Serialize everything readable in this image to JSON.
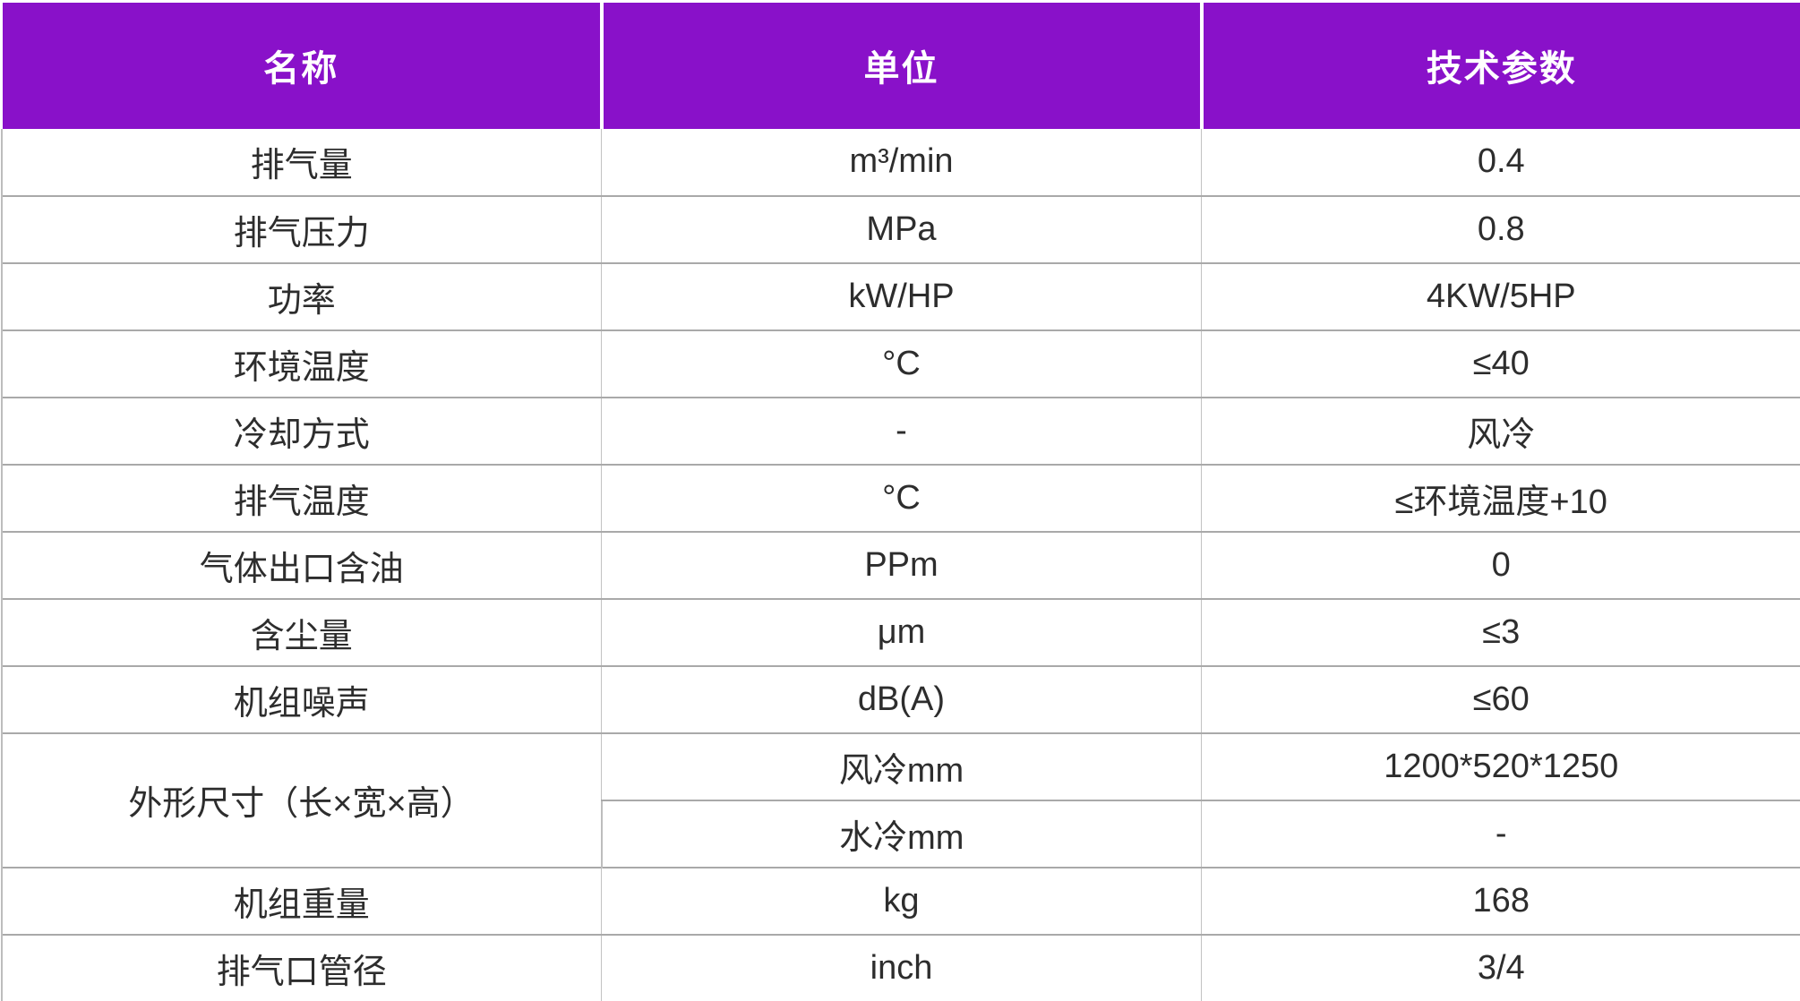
{
  "table": {
    "columns": {
      "name": "名称",
      "unit": "单位",
      "param": "技术参数"
    },
    "rows": [
      {
        "name": "排气量",
        "unit": "m³/min",
        "value": "0.4"
      },
      {
        "name": "排气压力",
        "unit": "MPa",
        "value": "0.8"
      },
      {
        "name": "功率",
        "unit": "kW/HP",
        "value": "4KW/5HP"
      },
      {
        "name": "环境温度",
        "unit": "°C",
        "value": "≤40"
      },
      {
        "name": "冷却方式",
        "unit": "-",
        "value": "风冷"
      },
      {
        "name": "排气温度",
        "unit": "°C",
        "value": "≤环境温度+10"
      },
      {
        "name": "气体出口含油",
        "unit": "PPm",
        "value": "0"
      },
      {
        "name": "含尘量",
        "unit": "μm",
        "value": "≤3"
      },
      {
        "name": "机组噪声",
        "unit": "dB(A)",
        "value": "≤60"
      },
      {
        "name": "外形尺寸（长×宽×高）",
        "unit": "风冷mm",
        "value": "1200*520*1250"
      },
      {
        "name": "",
        "unit": "水冷mm",
        "value": "-"
      },
      {
        "name": "机组重量",
        "unit": "kg",
        "value": "168"
      },
      {
        "name": "排气口管径",
        "unit": "inch",
        "value": "3/4"
      }
    ],
    "colors": {
      "header_bg": "#8911C9",
      "header_text": "#ffffff",
      "body_text": "#2d2d2d",
      "grid_line": "#a9a9a9"
    }
  }
}
